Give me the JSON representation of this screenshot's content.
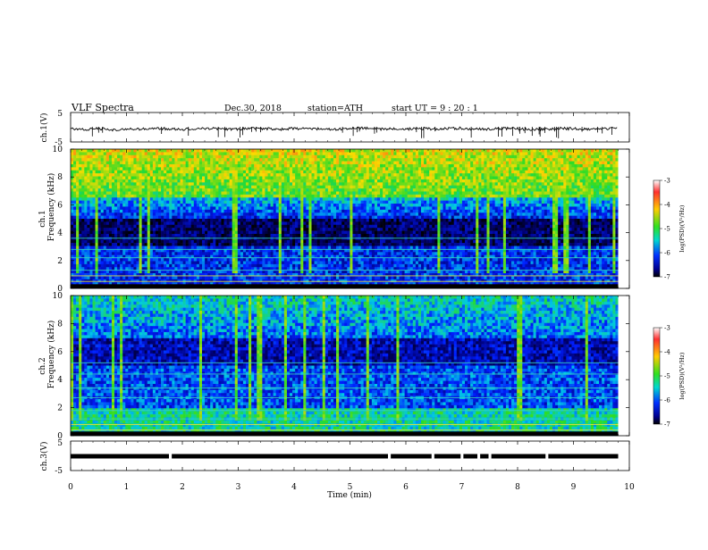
{
  "header": {
    "title": "VLF  Spectra",
    "date": "Dec.30, 2018",
    "station": "station=ATH",
    "start_ut": "start  UT  =   9  : 20 : 1"
  },
  "chart_data": [
    {
      "type": "line",
      "name": "ch1-waveform",
      "ylabel": "ch.1(V)",
      "ylim": [
        -5,
        5
      ],
      "yticks": [
        "5",
        "-5"
      ],
      "x": [
        0,
        0.25,
        0.5,
        0.75,
        1,
        1.25,
        1.5,
        1.75,
        2,
        2.25,
        2.5,
        2.75,
        3,
        3.25,
        3.5,
        3.75,
        4,
        4.25,
        4.5,
        4.75,
        5,
        5.25,
        5.5,
        5.75,
        6,
        6.25,
        6.5,
        6.75,
        7,
        7.25,
        7.5,
        7.75,
        8,
        8.25,
        8.5,
        8.75,
        9,
        9.25,
        9.5,
        9.8
      ],
      "values": [
        -0.6,
        -0.8,
        -0.4,
        -0.9,
        -0.5,
        -0.7,
        -0.3,
        -0.6,
        -0.8,
        -0.5,
        -0.4,
        -0.7,
        -0.6,
        -0.3,
        -0.5,
        -0.7,
        -0.4,
        -0.6,
        -0.5,
        -0.8,
        -0.4,
        -0.3,
        -0.6,
        -0.5,
        -0.7,
        -0.4,
        -0.6,
        -0.5,
        -0.3,
        -0.7,
        -0.6,
        -0.4,
        -0.5,
        -0.8,
        -0.6,
        -0.4,
        -0.5,
        -0.7,
        -0.6,
        -0.4
      ],
      "xlim": [
        0,
        10
      ]
    },
    {
      "type": "heatmap",
      "name": "ch1-spectrogram",
      "ylabel_top": "ch.1",
      "ylabel": "Frequency  (kHz)",
      "ylim": [
        0,
        10
      ],
      "yticks": [
        "0",
        "2",
        "4",
        "6",
        "8",
        "10"
      ],
      "xlim": [
        0,
        10
      ],
      "data_end_min": 9.8,
      "colorbar": {
        "label": "log(PSD)(V²/Hz)",
        "range": [
          -7,
          -3
        ],
        "ticks": [
          "-3",
          "-4",
          "-5",
          "-6",
          "-7"
        ]
      }
    },
    {
      "type": "heatmap",
      "name": "ch2-spectrogram",
      "ylabel_top": "ch.2",
      "ylabel": "Frequency  (kHz)",
      "ylim": [
        0,
        10
      ],
      "yticks": [
        "0",
        "2",
        "4",
        "6",
        "8",
        "10"
      ],
      "xlim": [
        0,
        10
      ],
      "data_end_min": 9.8,
      "colorbar": {
        "label": "log(PSD)(V²/Hz)",
        "range": [
          -7,
          -3
        ],
        "ticks": [
          "-3",
          "-4",
          "-5",
          "-6",
          "-7"
        ]
      }
    },
    {
      "type": "line",
      "name": "ch3-signal",
      "ylabel": "ch.3(V)",
      "ylim": [
        -5,
        5
      ],
      "yticks": [
        "5",
        "-5"
      ],
      "level": 0,
      "gaps_min": [
        1.78,
        5.7,
        6.48,
        7.0,
        7.3,
        7.5,
        8.52
      ],
      "xlim": [
        0,
        10
      ],
      "xlabel": "Time  (min)",
      "xticks": [
        "0",
        "1",
        "2",
        "3",
        "4",
        "5",
        "6",
        "7",
        "8",
        "9",
        "10"
      ]
    }
  ]
}
